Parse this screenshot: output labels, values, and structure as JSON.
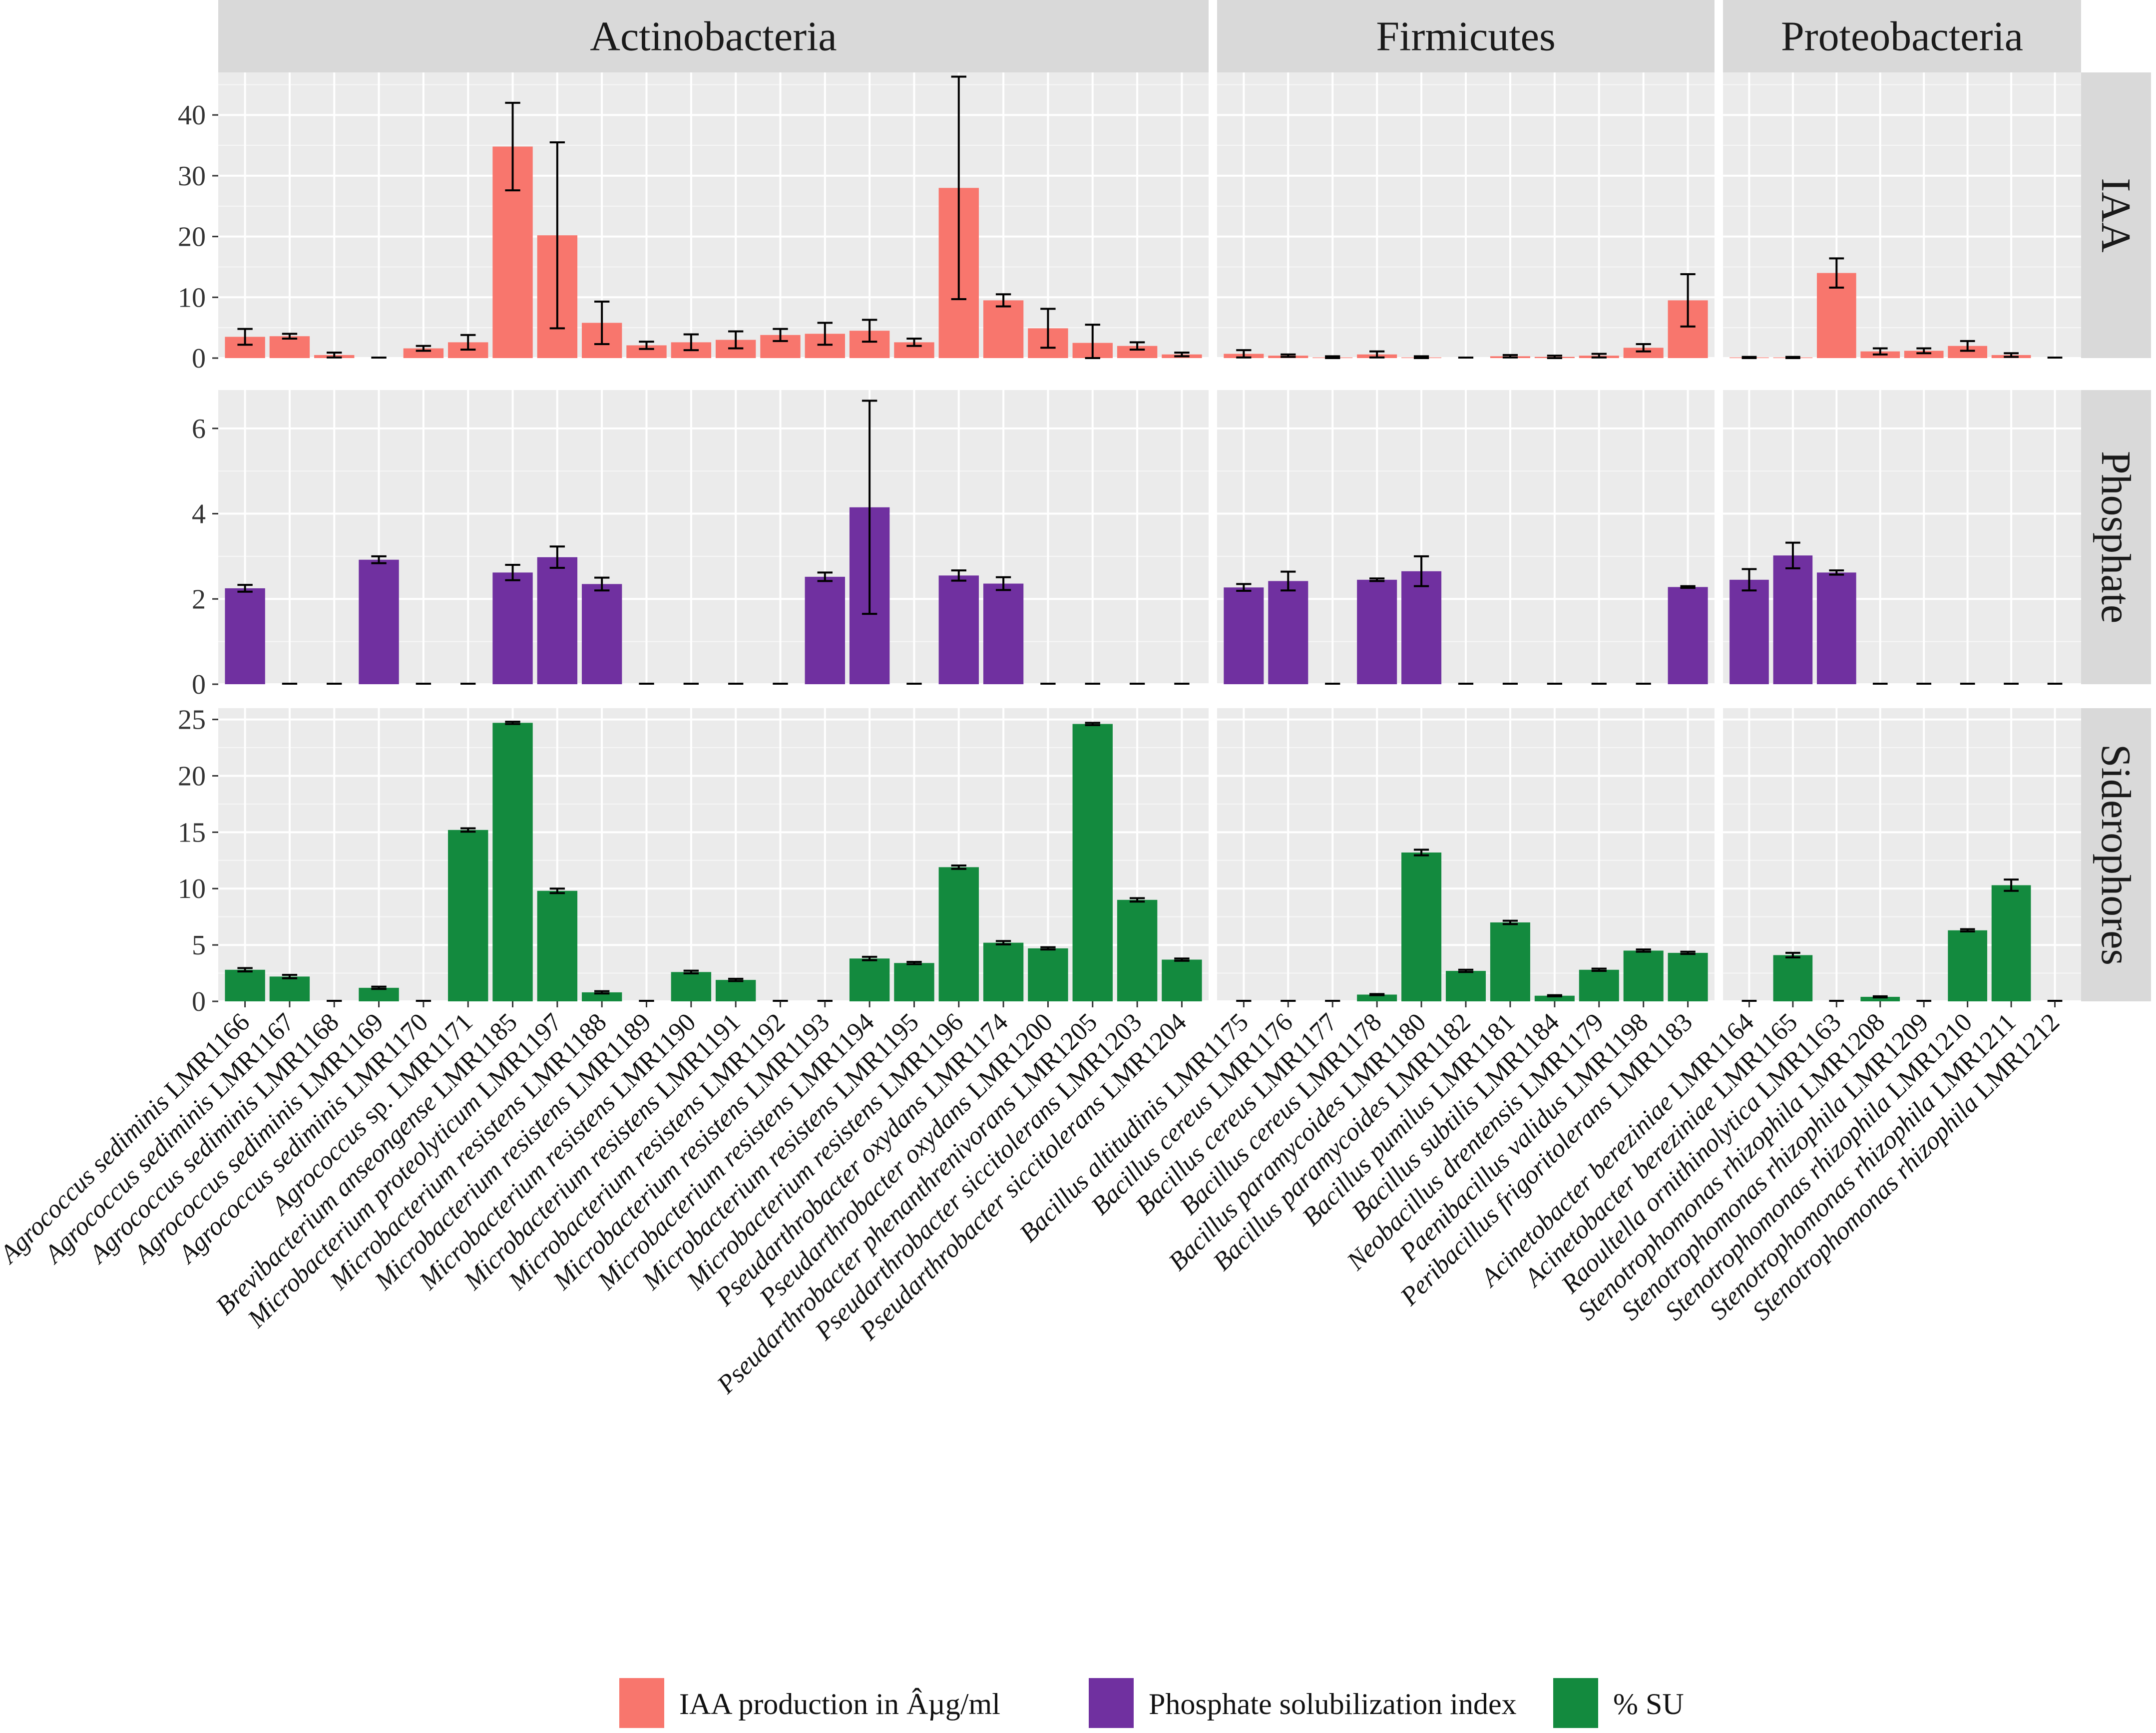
{
  "chart_data": {
    "type": "bar",
    "layout": "facet_grid",
    "title": "",
    "xlabel": "",
    "ylabel": "",
    "grid": true,
    "legend_position": "bottom",
    "phyla": [
      {
        "name": "Actinobacteria",
        "isolates": [
          {
            "label": "Agrococcus sediminis LMR1166",
            "species": "Agrococcus sediminis",
            "code": "LMR1166"
          },
          {
            "label": "Agrococcus sediminis LMR1167",
            "species": "Agrococcus sediminis",
            "code": "LMR1167"
          },
          {
            "label": "Agrococcus sediminis LMR1168",
            "species": "Agrococcus sediminis",
            "code": "LMR1168"
          },
          {
            "label": "Agrococcus sediminis LMR1169",
            "species": "Agrococcus sediminis",
            "code": "LMR1169"
          },
          {
            "label": "Agrococcus sediminis LMR1170",
            "species": "Agrococcus sediminis",
            "code": "LMR1170"
          },
          {
            "label": "Agrococcus sp. LMR1171",
            "species": "Agrococcus",
            "code": "sp. LMR1171"
          },
          {
            "label": "Brevibacterium anseongense LMR1185",
            "species": "Brevibacterium anseongense",
            "code": "LMR1185"
          },
          {
            "label": "Microbacterium proteolyticum LMR1197",
            "species": "Microbacterium proteolyticum",
            "code": "LMR1197"
          },
          {
            "label": "Microbacterium resistens LMR1188",
            "species": "Microbacterium resistens",
            "code": "LMR1188"
          },
          {
            "label": "Microbacterium resistens LMR1189",
            "species": "Microbacterium resistens",
            "code": "LMR1189"
          },
          {
            "label": "Microbacterium resistens LMR1190",
            "species": "Microbacterium resistens",
            "code": "LMR1190"
          },
          {
            "label": "Microbacterium resistens LMR1191",
            "species": "Microbacterium resistens",
            "code": "LMR1191"
          },
          {
            "label": "Microbacterium resistens LMR1192",
            "species": "Microbacterium resistens",
            "code": "LMR1192"
          },
          {
            "label": "Microbacterium resistens LMR1193",
            "species": "Microbacterium resistens",
            "code": "LMR1193"
          },
          {
            "label": "Microbacterium resistens LMR1194",
            "species": "Microbacterium resistens",
            "code": "LMR1194"
          },
          {
            "label": "Microbacterium resistens LMR1195",
            "species": "Microbacterium resistens",
            "code": "LMR1195"
          },
          {
            "label": "Microbacterium resistens LMR1196",
            "species": "Microbacterium resistens",
            "code": "LMR1196"
          },
          {
            "label": "Pseudarthrobacter oxydans LMR1174",
            "species": "Pseudarthrobacter oxydans",
            "code": "LMR1174"
          },
          {
            "label": "Pseudarthrobacter oxydans LMR1200",
            "species": "Pseudarthrobacter oxydans",
            "code": "LMR1200"
          },
          {
            "label": "Pseudarthrobacter phenanthrenivorans LMR1205",
            "species": "Pseudarthrobacter phenanthrenivorans",
            "code": "LMR1205"
          },
          {
            "label": "Pseudarthrobacter siccitolerans LMR1203",
            "species": "Pseudarthrobacter siccitolerans",
            "code": "LMR1203"
          },
          {
            "label": "Pseudarthrobacter siccitolerans LMR1204",
            "species": "Pseudarthrobacter siccitolerans",
            "code": "LMR1204"
          }
        ]
      },
      {
        "name": "Firmicutes",
        "isolates": [
          {
            "label": "Bacillus altitudinis LMR1175",
            "species": "Bacillus altitudinis",
            "code": "LMR1175"
          },
          {
            "label": "Bacillus cereus LMR1176",
            "species": "Bacillus cereus",
            "code": "LMR1176"
          },
          {
            "label": "Bacillus cereus LMR1177",
            "species": "Bacillus cereus",
            "code": "LMR1177"
          },
          {
            "label": "Bacillus cereus LMR1178",
            "species": "Bacillus cereus",
            "code": "LMR1178"
          },
          {
            "label": "Bacillus paramycoides LMR1180",
            "species": "Bacillus paramycoides",
            "code": "LMR1180"
          },
          {
            "label": "Bacillus paramycoides LMR1182",
            "species": "Bacillus paramycoides",
            "code": "LMR1182"
          },
          {
            "label": "Bacillus pumilus LMR1181",
            "species": "Bacillus pumilus",
            "code": "LMR1181"
          },
          {
            "label": "Bacillus subtilis LMR1184",
            "species": "Bacillus subtilis",
            "code": "LMR1184"
          },
          {
            "label": "Neobacillus drentensis LMR1179",
            "species": "Neobacillus drentensis",
            "code": "LMR1179"
          },
          {
            "label": "Paenibacillus validus LMR1198",
            "species": "Paenibacillus validus",
            "code": "LMR1198"
          },
          {
            "label": "Peribacillus frigoritolerans LMR1183",
            "species": "Peribacillus frigoritolerans",
            "code": "LMR1183"
          }
        ]
      },
      {
        "name": "Proteobacteria",
        "isolates": [
          {
            "label": "Acinetobacter bereziniae LMR1164",
            "species": "Acinetobacter bereziniae",
            "code": "LMR1164"
          },
          {
            "label": "Acinetobacter bereziniae LMR1165",
            "species": "Acinetobacter bereziniae",
            "code": "LMR1165"
          },
          {
            "label": "Raoultella ornithinolytica LMR1163",
            "species": "Raoultella ornithinolytica",
            "code": "LMR1163"
          },
          {
            "label": "Stenotrophomonas rhizophila LMR1208",
            "species": "Stenotrophomonas rhizophila",
            "code": "LMR1208"
          },
          {
            "label": "Stenotrophomonas rhizophila LMR1209",
            "species": "Stenotrophomonas rhizophila",
            "code": "LMR1209"
          },
          {
            "label": "Stenotrophomonas rhizophila LMR1210",
            "species": "Stenotrophomonas rhizophila",
            "code": "LMR1210"
          },
          {
            "label": "Stenotrophomonas rhizophila LMR1211",
            "species": "Stenotrophomonas rhizophila",
            "code": "LMR1211"
          },
          {
            "label": "Stenotrophomonas rhizophila LMR1212",
            "species": "Stenotrophomonas rhizophila",
            "code": "LMR1212"
          }
        ]
      }
    ],
    "rows": [
      {
        "name": "IAA",
        "ylim": [
          0,
          47
        ],
        "ticks": [
          0,
          10,
          20,
          30,
          40
        ],
        "color": "#F8766D",
        "series": [
          {
            "phylum": "Actinobacteria",
            "values": [
              3.5,
              3.6,
              0.5,
              0,
              1.6,
              2.6,
              34.8,
              20.2,
              5.8,
              2.1,
              2.6,
              3.0,
              3.8,
              4.0,
              4.5,
              2.6,
              28.0,
              9.5,
              4.9,
              2.5,
              2.0,
              0.6
            ],
            "errors": [
              1.3,
              0.4,
              0.4,
              0,
              0.4,
              1.2,
              7.2,
              15.3,
              3.5,
              0.6,
              1.3,
              1.4,
              1.0,
              1.8,
              1.8,
              0.6,
              18.3,
              1.0,
              3.2,
              3.0,
              0.6,
              0.3
            ]
          },
          {
            "phylum": "Firmicutes",
            "values": [
              0.7,
              0.4,
              0.1,
              0.6,
              0.1,
              0,
              0.3,
              0.2,
              0.4,
              1.7,
              9.5
            ],
            "errors": [
              0.6,
              0.2,
              0.2,
              0.5,
              0.2,
              0,
              0.2,
              0.2,
              0.3,
              0.6,
              4.3
            ]
          },
          {
            "phylum": "Proteobacteria",
            "values": [
              0.1,
              0.1,
              14.0,
              1.1,
              1.2,
              2.0,
              0.5,
              0
            ],
            "errors": [
              0.1,
              0.1,
              2.4,
              0.5,
              0.4,
              0.8,
              0.3,
              0
            ]
          }
        ]
      },
      {
        "name": "Phosphate",
        "ylim": [
          0,
          6.9
        ],
        "ticks": [
          0,
          2,
          4,
          6
        ],
        "color": "#7030A0",
        "series": [
          {
            "phylum": "Actinobacteria",
            "values": [
              2.25,
              0,
              0,
              2.92,
              0,
              0,
              2.62,
              2.98,
              2.35,
              0,
              0,
              0,
              0,
              2.52,
              4.15,
              0,
              2.55,
              2.36,
              0,
              0,
              0,
              0
            ],
            "errors": [
              0.08,
              0,
              0,
              0.08,
              0,
              0,
              0.18,
              0.25,
              0.15,
              0,
              0,
              0,
              0,
              0.1,
              2.5,
              0,
              0.12,
              0.15,
              0,
              0,
              0,
              0
            ]
          },
          {
            "phylum": "Firmicutes",
            "values": [
              2.27,
              2.42,
              0,
              2.45,
              2.65,
              0,
              0,
              0,
              0,
              0,
              2.28
            ],
            "errors": [
              0.08,
              0.22,
              0,
              0.03,
              0.35,
              0,
              0,
              0,
              0,
              0,
              0.02
            ]
          },
          {
            "phylum": "Proteobacteria",
            "values": [
              2.45,
              3.02,
              2.62,
              0,
              0,
              0,
              0,
              0
            ],
            "errors": [
              0.25,
              0.3,
              0.05,
              0,
              0,
              0,
              0,
              0
            ]
          }
        ]
      },
      {
        "name": "Siderophores",
        "ylim": [
          0,
          26
        ],
        "ticks": [
          0,
          5,
          10,
          15,
          20,
          25
        ],
        "color": "#138A3E",
        "series": [
          {
            "phylum": "Actinobacteria",
            "values": [
              2.8,
              2.2,
              0,
              1.2,
              0,
              15.2,
              24.7,
              9.8,
              0.8,
              0,
              2.6,
              1.9,
              0,
              0,
              3.8,
              3.4,
              11.9,
              5.2,
              4.7,
              24.6,
              9.0,
              3.7
            ],
            "errors": [
              0.15,
              0.15,
              0,
              0.1,
              0,
              0.15,
              0.1,
              0.2,
              0.1,
              0,
              0.12,
              0.1,
              0,
              0,
              0.15,
              0.1,
              0.15,
              0.15,
              0.1,
              0.1,
              0.15,
              0.1
            ]
          },
          {
            "phylum": "Firmicutes",
            "values": [
              0,
              0,
              0,
              0.6,
              13.2,
              2.7,
              7.0,
              0.5,
              2.8,
              4.5,
              4.3
            ],
            "errors": [
              0,
              0,
              0,
              0.05,
              0.25,
              0.1,
              0.15,
              0.05,
              0.1,
              0.1,
              0.1
            ]
          },
          {
            "phylum": "Proteobacteria",
            "values": [
              0,
              4.1,
              0,
              0.4,
              0,
              6.3,
              10.3,
              0
            ],
            "errors": [
              0,
              0.2,
              0,
              0.05,
              0,
              0.1,
              0.5,
              0
            ]
          }
        ]
      }
    ],
    "legend": [
      {
        "label": "IAA production in Âµg/ml",
        "color": "#F8766D"
      },
      {
        "label": "Phosphate solubilization index",
        "color": "#7030A0"
      },
      {
        "label": "% SU",
        "color": "#138A3E"
      }
    ]
  }
}
